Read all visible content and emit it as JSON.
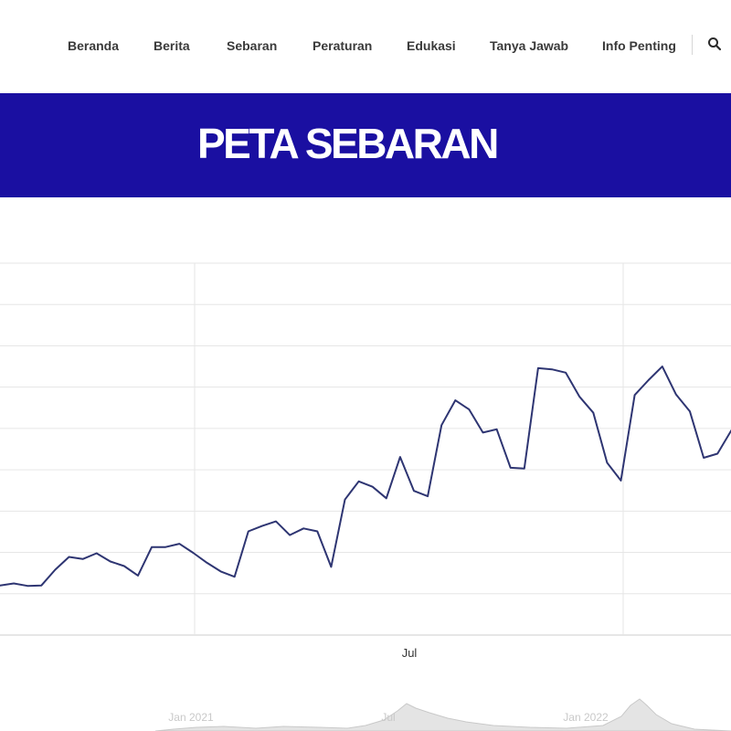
{
  "nav": {
    "items": [
      {
        "id": "beranda",
        "label": "Beranda"
      },
      {
        "id": "berita",
        "label": "Berita"
      },
      {
        "id": "sebaran",
        "label": "Sebaran"
      },
      {
        "id": "peraturan",
        "label": "Peraturan"
      },
      {
        "id": "edukasi",
        "label": "Edukasi"
      },
      {
        "id": "tanya-jawab",
        "label": "Tanya Jawab"
      },
      {
        "id": "info-penting",
        "label": "Info Penting"
      }
    ],
    "search_icon": "search-icon"
  },
  "banner": {
    "title": "PETA SEBARAN",
    "color": "#1a0fa1"
  },
  "chart_data": {
    "type": "line",
    "title": "",
    "xlabel": "",
    "ylabel": "",
    "x_tick_labels": [
      "Jul"
    ],
    "grid": true,
    "line_color": "#2e3572",
    "series": [
      {
        "name": "",
        "values": [
          12.0,
          12.5,
          11.9,
          12.0,
          15.8,
          18.9,
          18.4,
          19.8,
          17.8,
          16.7,
          14.4,
          21.3,
          21.3,
          22.1,
          19.9,
          17.5,
          15.4,
          14.1,
          25.1,
          26.4,
          27.5,
          24.2,
          25.8,
          25.1,
          16.5,
          32.8,
          37.2,
          35.9,
          33.1,
          43.1,
          34.9,
          33.6,
          50.8,
          56.8,
          54.6,
          49.0,
          49.8,
          40.5,
          40.3,
          64.6,
          64.3,
          63.5,
          57.7,
          53.8,
          41.7,
          37.4,
          58.1,
          61.7,
          65.0,
          58.2,
          54.1,
          42.9,
          43.9,
          49.5
        ]
      }
    ],
    "navigator": {
      "labels": [
        "Jan 2021",
        "Jul",
        "Jan 2022"
      ]
    }
  }
}
